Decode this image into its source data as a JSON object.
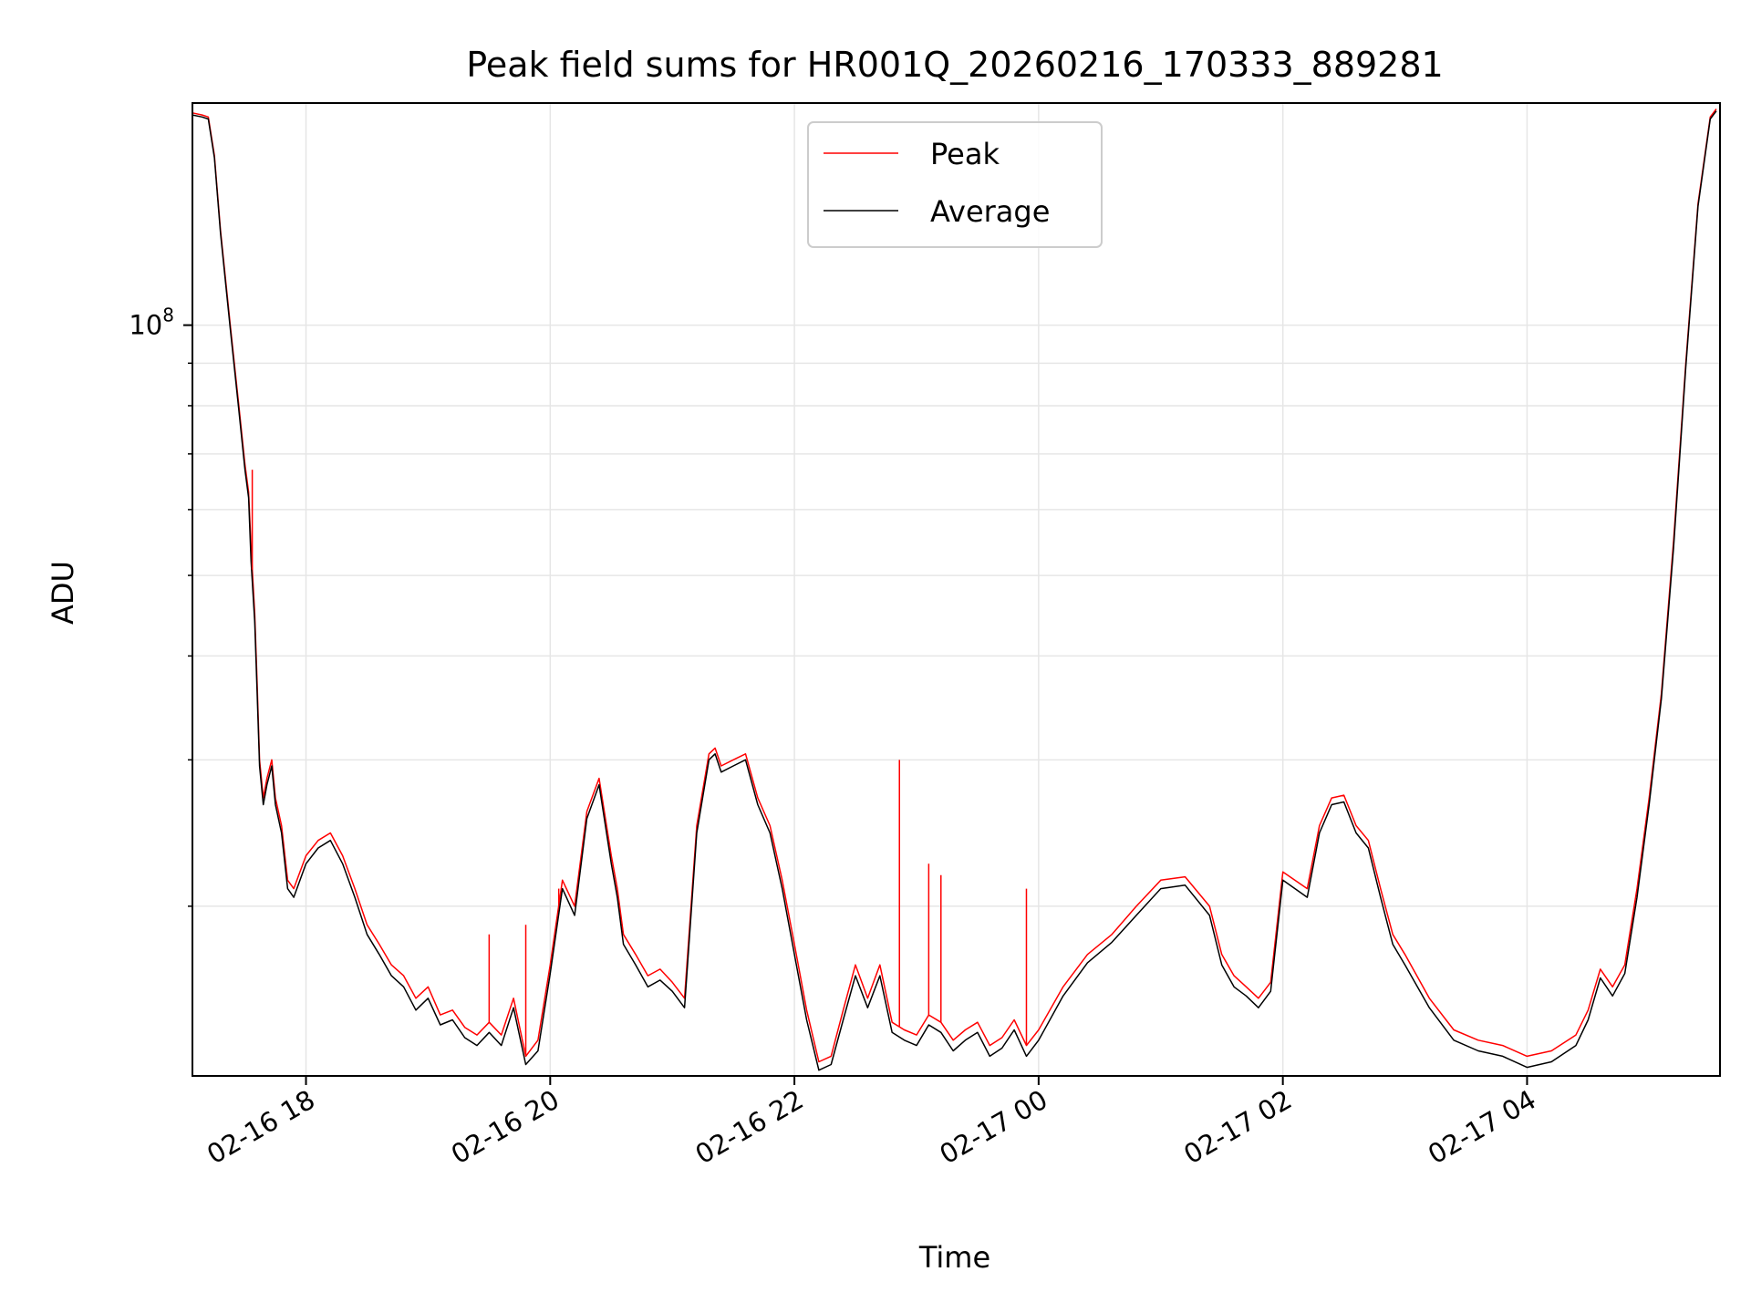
{
  "chart_data": {
    "type": "line",
    "title": "Peak field sums for HR001Q_20260216_170333_889281",
    "xlabel": "Time",
    "ylabel": "ADU",
    "yscale": "log",
    "ylim": [
      12500000,
      185000000
    ],
    "xlim_hours": [
      17.07,
      29.58
    ],
    "grid": true,
    "legend_position": "upper-center",
    "colors": {
      "peak": "#ff0000",
      "average": "#000000",
      "grid": "#e6e6e6",
      "axis": "#000000"
    },
    "x_ticks": [
      {
        "hour": 18,
        "label": "02-16 18"
      },
      {
        "hour": 20,
        "label": "02-16 20"
      },
      {
        "hour": 22,
        "label": "02-16 22"
      },
      {
        "hour": 24,
        "label": "02-17 00"
      },
      {
        "hour": 26,
        "label": "02-17 02"
      },
      {
        "hour": 28,
        "label": "02-17 04"
      }
    ],
    "y_major_ticks": [
      {
        "value": 100000000,
        "base": "10",
        "exponent": "8"
      }
    ],
    "y_minor_ticks": [
      20000000,
      30000000,
      40000000,
      50000000,
      60000000,
      70000000,
      80000000,
      90000000
    ],
    "series": [
      {
        "name": "Peak",
        "key": "peak",
        "x_hours": [
          17.07,
          17.15,
          17.2,
          17.25,
          17.3,
          17.38,
          17.45,
          17.5,
          17.53,
          17.55,
          17.58,
          17.6,
          17.62,
          17.65,
          17.68,
          17.72,
          17.75,
          17.8,
          17.85,
          17.9,
          18.0,
          18.1,
          18.2,
          18.3,
          18.4,
          18.5,
          18.6,
          18.7,
          18.8,
          18.9,
          19.0,
          19.1,
          19.2,
          19.3,
          19.4,
          19.5,
          19.6,
          19.7,
          19.8,
          19.9,
          20.0,
          20.1,
          20.2,
          20.3,
          20.4,
          20.5,
          20.55,
          20.6,
          20.7,
          20.8,
          20.9,
          21.0,
          21.1,
          21.2,
          21.3,
          21.35,
          21.4,
          21.5,
          21.6,
          21.7,
          21.8,
          21.9,
          22.0,
          22.1,
          22.2,
          22.3,
          22.4,
          22.5,
          22.6,
          22.7,
          22.8,
          22.9,
          23.0,
          23.1,
          23.2,
          23.3,
          23.4,
          23.5,
          23.6,
          23.7,
          23.8,
          23.9,
          24.0,
          24.2,
          24.4,
          24.6,
          24.8,
          25.0,
          25.2,
          25.4,
          25.5,
          25.6,
          25.7,
          25.8,
          25.9,
          26.0,
          26.2,
          26.3,
          26.4,
          26.5,
          26.6,
          26.7,
          26.8,
          26.9,
          27.0,
          27.2,
          27.4,
          27.6,
          27.8,
          28.0,
          28.2,
          28.4,
          28.5,
          28.6,
          28.7,
          28.8,
          28.9,
          29.0,
          29.1,
          29.2,
          29.3,
          29.4,
          29.5,
          29.55
        ],
        "values": [
          180000000,
          179000000,
          178000000,
          160000000,
          130000000,
          100000000,
          80000000,
          68000000,
          63000000,
          54000000,
          45000000,
          37000000,
          30000000,
          27000000,
          28500000,
          30000000,
          27000000,
          25000000,
          21500000,
          21000000,
          23000000,
          24000000,
          24500000,
          23000000,
          21000000,
          19000000,
          18000000,
          17000000,
          16500000,
          15500000,
          16000000,
          14800000,
          15000000,
          14300000,
          14000000,
          14500000,
          14000000,
          15500000,
          13200000,
          13800000,
          17000000,
          21500000,
          20000000,
          26000000,
          28500000,
          23000000,
          21000000,
          18500000,
          17500000,
          16500000,
          16800000,
          16200000,
          15500000,
          25000000,
          30500000,
          31000000,
          29500000,
          30000000,
          30500000,
          27000000,
          25000000,
          21500000,
          18000000,
          15000000,
          13000000,
          13200000,
          15000000,
          17000000,
          15500000,
          17000000,
          14500000,
          14200000,
          14000000,
          14800000,
          14500000,
          13800000,
          14200000,
          14500000,
          13600000,
          13900000,
          14600000,
          13600000,
          14200000,
          16000000,
          17500000,
          18500000,
          20000000,
          21500000,
          21700000,
          20000000,
          17500000,
          16500000,
          16000000,
          15500000,
          16200000,
          22000000,
          21000000,
          25000000,
          27000000,
          27200000,
          25000000,
          24000000,
          21000000,
          18500000,
          17500000,
          15500000,
          14200000,
          13800000,
          13600000,
          13200000,
          13400000,
          14000000,
          15000000,
          16800000,
          16000000,
          17000000,
          21000000,
          27000000,
          36000000,
          55000000,
          90000000,
          140000000,
          178000000,
          182000000
        ]
      },
      {
        "name": "Average",
        "key": "average",
        "x_hours": [
          17.07,
          17.15,
          17.2,
          17.25,
          17.3,
          17.38,
          17.45,
          17.5,
          17.53,
          17.55,
          17.58,
          17.6,
          17.62,
          17.65,
          17.68,
          17.72,
          17.75,
          17.8,
          17.85,
          17.9,
          18.0,
          18.1,
          18.2,
          18.3,
          18.4,
          18.5,
          18.6,
          18.7,
          18.8,
          18.9,
          19.0,
          19.1,
          19.2,
          19.3,
          19.4,
          19.5,
          19.6,
          19.7,
          19.8,
          19.9,
          20.0,
          20.1,
          20.2,
          20.3,
          20.4,
          20.5,
          20.55,
          20.6,
          20.7,
          20.8,
          20.9,
          21.0,
          21.1,
          21.2,
          21.3,
          21.35,
          21.4,
          21.5,
          21.6,
          21.7,
          21.8,
          21.9,
          22.0,
          22.1,
          22.2,
          22.3,
          22.4,
          22.5,
          22.6,
          22.7,
          22.8,
          22.9,
          23.0,
          23.1,
          23.2,
          23.3,
          23.4,
          23.5,
          23.6,
          23.7,
          23.8,
          23.9,
          24.0,
          24.2,
          24.4,
          24.6,
          24.8,
          25.0,
          25.2,
          25.4,
          25.5,
          25.6,
          25.7,
          25.8,
          25.9,
          26.0,
          26.2,
          26.3,
          26.4,
          26.5,
          26.6,
          26.7,
          26.8,
          26.9,
          27.0,
          27.2,
          27.4,
          27.6,
          27.8,
          28.0,
          28.2,
          28.4,
          28.5,
          28.6,
          28.7,
          28.8,
          28.9,
          29.0,
          29.1,
          29.2,
          29.3,
          29.4,
          29.5,
          29.55
        ],
        "values": [
          179000000,
          178000000,
          177000000,
          159000000,
          129000000,
          99000000,
          79000000,
          67000000,
          62000000,
          52000000,
          44000000,
          36000000,
          29500000,
          26500000,
          28000000,
          29500000,
          26500000,
          24500000,
          21000000,
          20500000,
          22500000,
          23500000,
          24000000,
          22500000,
          20500000,
          18500000,
          17500000,
          16500000,
          16000000,
          15000000,
          15500000,
          14400000,
          14600000,
          13900000,
          13600000,
          14100000,
          13600000,
          15100000,
          12900000,
          13400000,
          16600000,
          21000000,
          19500000,
          25500000,
          28000000,
          22500000,
          20500000,
          18000000,
          17000000,
          16000000,
          16300000,
          15800000,
          15100000,
          24500000,
          30000000,
          30500000,
          29000000,
          29500000,
          30000000,
          26500000,
          24500000,
          21000000,
          17500000,
          14600000,
          12700000,
          12900000,
          14600000,
          16500000,
          15100000,
          16500000,
          14100000,
          13800000,
          13600000,
          14400000,
          14100000,
          13400000,
          13800000,
          14100000,
          13200000,
          13500000,
          14200000,
          13200000,
          13800000,
          15600000,
          17100000,
          18100000,
          19500000,
          21000000,
          21200000,
          19500000,
          17000000,
          16000000,
          15600000,
          15100000,
          15800000,
          21500000,
          20500000,
          24500000,
          26500000,
          26700000,
          24500000,
          23500000,
          20500000,
          18000000,
          17000000,
          15100000,
          13800000,
          13400000,
          13200000,
          12800000,
          13000000,
          13600000,
          14600000,
          16400000,
          15600000,
          16600000,
          20500000,
          26500000,
          35500000,
          54000000,
          89000000,
          139000000,
          177000000,
          181000000
        ]
      }
    ],
    "peak_spikes": [
      {
        "x_hour": 17.56,
        "value": 67000000
      },
      {
        "x_hour": 22.86,
        "value": 30000000
      },
      {
        "x_hour": 23.1,
        "value": 22500000
      },
      {
        "x_hour": 23.2,
        "value": 21800000
      },
      {
        "x_hour": 19.5,
        "value": 18500000
      },
      {
        "x_hour": 19.8,
        "value": 19000000
      },
      {
        "x_hour": 23.9,
        "value": 21000000
      },
      {
        "x_hour": 20.07,
        "value": 21000000
      }
    ]
  }
}
